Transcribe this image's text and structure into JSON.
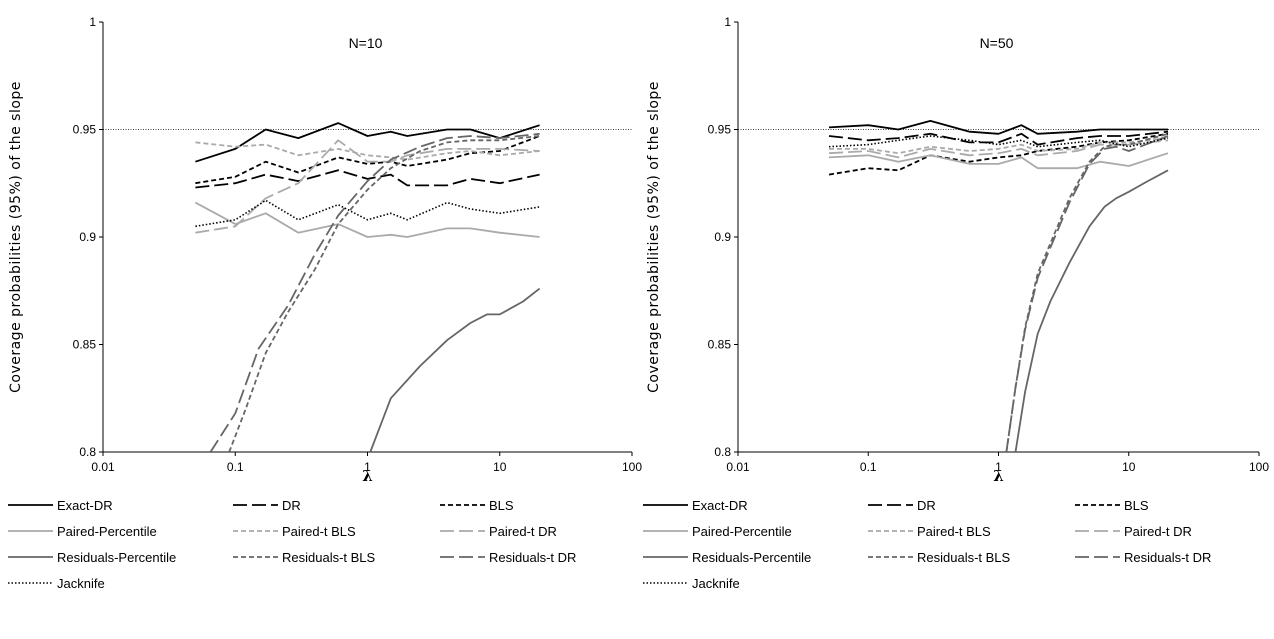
{
  "chart_data": [
    {
      "type": "line",
      "title": "",
      "annotation": "N=10",
      "xlabel": "λ",
      "ylabel": "Coverage probabilities (95%) of the slope",
      "xscale": "log",
      "xlim": [
        0.01,
        100
      ],
      "ylim": [
        0.8,
        1
      ],
      "x_ticks": [
        "0.01",
        "0.1",
        "1",
        "10",
        "100"
      ],
      "y_ticks": [
        "0.8",
        "0.85",
        "0.9",
        "0.95",
        "1"
      ],
      "reference_line": 0.95,
      "grid": false,
      "legend_position": "bottom",
      "series": [
        {
          "name": "Exact-DR",
          "color": "#000000",
          "dash": "solid",
          "x": [
            0.05,
            0.1,
            0.17,
            0.3,
            0.6,
            1.0,
            1.5,
            2.0,
            4.0,
            6.0,
            10.0,
            20.0
          ],
          "y": [
            0.935,
            0.941,
            0.95,
            0.946,
            0.953,
            0.947,
            0.949,
            0.947,
            0.95,
            0.95,
            0.946,
            0.952
          ]
        },
        {
          "name": "DR",
          "color": "#000000",
          "dash": "longdash",
          "x": [
            0.05,
            0.1,
            0.17,
            0.3,
            0.6,
            1.0,
            1.5,
            2.0,
            4.0,
            6.0,
            10.0,
            20.0
          ],
          "y": [
            0.923,
            0.925,
            0.929,
            0.926,
            0.931,
            0.927,
            0.929,
            0.924,
            0.924,
            0.927,
            0.925,
            0.929
          ]
        },
        {
          "name": "BLS",
          "color": "#000000",
          "dash": "shortdash",
          "x": [
            0.05,
            0.1,
            0.17,
            0.3,
            0.6,
            1.0,
            1.5,
            2.0,
            4.0,
            6.0,
            10.0,
            20.0
          ],
          "y": [
            0.925,
            0.928,
            0.935,
            0.93,
            0.937,
            0.934,
            0.935,
            0.933,
            0.936,
            0.939,
            0.94,
            0.947
          ]
        },
        {
          "name": "Paired-Percentile",
          "color": "#aaaaaa",
          "dash": "solid",
          "x": [
            0.05,
            0.1,
            0.17,
            0.3,
            0.6,
            1.0,
            1.5,
            2.0,
            4.0,
            6.0,
            10.0,
            20.0
          ],
          "y": [
            0.916,
            0.906,
            0.911,
            0.902,
            0.906,
            0.9,
            0.901,
            0.9,
            0.904,
            0.904,
            0.902,
            0.9
          ]
        },
        {
          "name": "Paired-t BLS",
          "color": "#aaaaaa",
          "dash": "shortdash",
          "x": [
            0.05,
            0.1,
            0.17,
            0.3,
            0.6,
            1.0,
            1.5,
            2.0,
            4.0,
            6.0,
            10.0,
            20.0
          ],
          "y": [
            0.944,
            0.942,
            0.943,
            0.938,
            0.941,
            0.938,
            0.937,
            0.936,
            0.939,
            0.94,
            0.938,
            0.94
          ]
        },
        {
          "name": "Paired-t DR",
          "color": "#aaaaaa",
          "dash": "longdash",
          "x": [
            0.05,
            0.1,
            0.17,
            0.3,
            0.6,
            1.0,
            1.5,
            2.0,
            4.0,
            6.0,
            10.0,
            20.0
          ],
          "y": [
            0.902,
            0.905,
            0.918,
            0.925,
            0.945,
            0.935,
            0.935,
            0.938,
            0.941,
            0.941,
            0.941,
            0.94
          ]
        },
        {
          "name": "Residuals-Percentile",
          "color": "#666666",
          "dash": "solid",
          "x": [
            1.05,
            1.5,
            2.5,
            4.0,
            6.0,
            8.0,
            10.0,
            15.0,
            20.0
          ],
          "y": [
            0.8,
            0.825,
            0.84,
            0.852,
            0.86,
            0.864,
            0.864,
            0.87,
            0.876
          ]
        },
        {
          "name": "Residuals-t BLS",
          "color": "#666666",
          "dash": "shortdash",
          "x": [
            0.09,
            0.12,
            0.17,
            0.25,
            0.4,
            0.6,
            1.0,
            1.5,
            2.5,
            4.0,
            6.0,
            10.0,
            20.0
          ],
          "y": [
            0.8,
            0.82,
            0.846,
            0.865,
            0.885,
            0.906,
            0.922,
            0.932,
            0.94,
            0.944,
            0.945,
            0.945,
            0.947
          ]
        },
        {
          "name": "Residuals-t DR",
          "color": "#666666",
          "dash": "longdash",
          "x": [
            0.065,
            0.1,
            0.15,
            0.25,
            0.4,
            0.6,
            1.0,
            1.5,
            2.5,
            4.0,
            6.0,
            10.0,
            20.0
          ],
          "y": [
            0.8,
            0.818,
            0.848,
            0.868,
            0.892,
            0.91,
            0.926,
            0.936,
            0.942,
            0.946,
            0.947,
            0.946,
            0.948
          ]
        },
        {
          "name": "Jacknife",
          "color": "#000000",
          "dash": "dotted",
          "x": [
            0.05,
            0.1,
            0.17,
            0.3,
            0.6,
            1.0,
            1.5,
            2.0,
            4.0,
            6.0,
            10.0,
            20.0
          ],
          "y": [
            0.905,
            0.908,
            0.917,
            0.908,
            0.915,
            0.908,
            0.911,
            0.908,
            0.916,
            0.913,
            0.911,
            0.914
          ]
        }
      ]
    },
    {
      "type": "line",
      "title": "",
      "annotation": "N=50",
      "xlabel": "λ",
      "ylabel": "Coverage probabilities (95%) of the slope",
      "xscale": "log",
      "xlim": [
        0.01,
        100
      ],
      "ylim": [
        0.8,
        1
      ],
      "x_ticks": [
        "0.01",
        "0.1",
        "1",
        "10",
        "100"
      ],
      "y_ticks": [
        "0.8",
        "0.85",
        "0.9",
        "0.95",
        "1"
      ],
      "reference_line": 0.95,
      "grid": false,
      "legend_position": "bottom",
      "series": [
        {
          "name": "Exact-DR",
          "color": "#000000",
          "dash": "solid",
          "x": [
            0.05,
            0.1,
            0.17,
            0.3,
            0.6,
            1.0,
            1.5,
            2.0,
            4.0,
            6.0,
            10.0,
            20.0
          ],
          "y": [
            0.951,
            0.952,
            0.95,
            0.954,
            0.949,
            0.948,
            0.952,
            0.948,
            0.949,
            0.95,
            0.95,
            0.95
          ]
        },
        {
          "name": "DR",
          "color": "#000000",
          "dash": "longdash",
          "x": [
            0.05,
            0.1,
            0.17,
            0.3,
            0.6,
            1.0,
            1.5,
            2.0,
            4.0,
            6.0,
            10.0,
            20.0
          ],
          "y": [
            0.947,
            0.945,
            0.946,
            0.948,
            0.944,
            0.944,
            0.948,
            0.943,
            0.946,
            0.947,
            0.947,
            0.949
          ]
        },
        {
          "name": "BLS",
          "color": "#000000",
          "dash": "shortdash",
          "x": [
            0.05,
            0.1,
            0.17,
            0.3,
            0.6,
            1.0,
            1.5,
            2.0,
            4.0,
            6.0,
            10.0,
            20.0
          ],
          "y": [
            0.929,
            0.932,
            0.931,
            0.938,
            0.935,
            0.937,
            0.938,
            0.94,
            0.942,
            0.944,
            0.945,
            0.948
          ]
        },
        {
          "name": "Paired-Percentile",
          "color": "#aaaaaa",
          "dash": "solid",
          "x": [
            0.05,
            0.1,
            0.17,
            0.3,
            0.6,
            1.0,
            1.5,
            2.0,
            4.0,
            6.0,
            10.0,
            20.0
          ],
          "y": [
            0.937,
            0.938,
            0.935,
            0.938,
            0.934,
            0.934,
            0.937,
            0.932,
            0.932,
            0.935,
            0.933,
            0.939
          ]
        },
        {
          "name": "Paired-t BLS",
          "color": "#aaaaaa",
          "dash": "shortdash",
          "x": [
            0.05,
            0.1,
            0.17,
            0.3,
            0.6,
            1.0,
            1.5,
            2.0,
            4.0,
            6.0,
            10.0,
            20.0
          ],
          "y": [
            0.941,
            0.941,
            0.939,
            0.942,
            0.94,
            0.941,
            0.943,
            0.94,
            0.941,
            0.944,
            0.944,
            0.946
          ]
        },
        {
          "name": "Paired-t DR",
          "color": "#aaaaaa",
          "dash": "longdash",
          "x": [
            0.05,
            0.1,
            0.17,
            0.3,
            0.6,
            1.0,
            1.5,
            2.0,
            4.0,
            6.0,
            10.0,
            20.0
          ],
          "y": [
            0.939,
            0.94,
            0.937,
            0.941,
            0.938,
            0.939,
            0.941,
            0.938,
            0.94,
            0.943,
            0.943,
            0.945
          ]
        },
        {
          "name": "Residuals-Percentile",
          "color": "#666666",
          "dash": "solid",
          "x": [
            1.35,
            1.6,
            2.0,
            2.5,
            3.5,
            5.0,
            6.5,
            8.0,
            10.0,
            14.0,
            20.0
          ],
          "y": [
            0.8,
            0.828,
            0.855,
            0.87,
            0.888,
            0.905,
            0.914,
            0.918,
            0.921,
            0.926,
            0.931
          ]
        },
        {
          "name": "Residuals-t BLS",
          "color": "#666666",
          "dash": "shortdash",
          "x": [
            1.15,
            1.35,
            1.6,
            2.0,
            2.5,
            3.5,
            5.0,
            6.5,
            8.0,
            10.0,
            20.0
          ],
          "y": [
            0.8,
            0.83,
            0.858,
            0.883,
            0.897,
            0.918,
            0.935,
            0.942,
            0.943,
            0.943,
            0.948
          ]
        },
        {
          "name": "Residuals-t DR",
          "color": "#666666",
          "dash": "longdash",
          "x": [
            1.15,
            1.35,
            1.6,
            2.0,
            2.5,
            3.5,
            5.0,
            6.5,
            8.0,
            10.0,
            20.0
          ],
          "y": [
            0.8,
            0.83,
            0.857,
            0.881,
            0.895,
            0.916,
            0.934,
            0.941,
            0.942,
            0.94,
            0.947
          ]
        },
        {
          "name": "Jacknife",
          "color": "#000000",
          "dash": "dotted",
          "x": [
            0.05,
            0.1,
            0.17,
            0.3,
            0.6,
            1.0,
            1.5,
            2.0,
            4.0,
            6.0,
            10.0,
            20.0
          ],
          "y": [
            0.942,
            0.943,
            0.945,
            0.947,
            0.945,
            0.943,
            0.945,
            0.942,
            0.944,
            0.945,
            0.942,
            0.946
          ]
        }
      ]
    }
  ]
}
